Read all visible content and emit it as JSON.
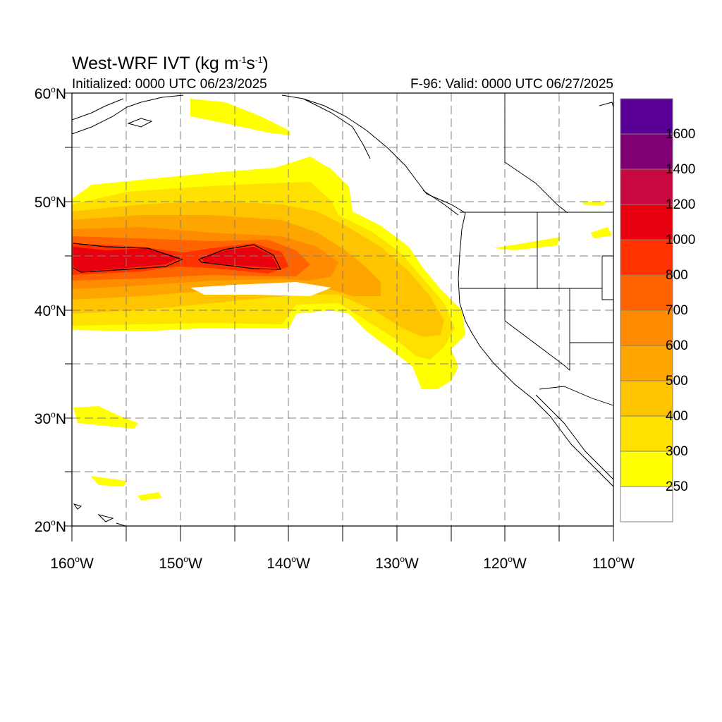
{
  "title": {
    "main": "West-WRF IVT (kg m",
    "exp1": "-1",
    "mid": "s",
    "exp2": "-1",
    "end": ")"
  },
  "subtitle_left": "Initialized: 0000 UTC 06/23/2025",
  "subtitle_right": "F-96: Valid: 0000 UTC 06/27/2025",
  "lat_labels": [
    {
      "value": 60,
      "text": "60",
      "hemi": "N"
    },
    {
      "value": 50,
      "text": "50",
      "hemi": "N"
    },
    {
      "value": 40,
      "text": "40",
      "hemi": "N"
    },
    {
      "value": 30,
      "text": "30",
      "hemi": "N"
    },
    {
      "value": 20,
      "text": "20",
      "hemi": "N"
    }
  ],
  "lon_labels": [
    {
      "value": -160,
      "text": "160",
      "hemi": "W"
    },
    {
      "value": -150,
      "text": "150",
      "hemi": "W"
    },
    {
      "value": -140,
      "text": "140",
      "hemi": "W"
    },
    {
      "value": -130,
      "text": "130",
      "hemi": "W"
    },
    {
      "value": -120,
      "text": "120",
      "hemi": "W"
    },
    {
      "value": -110,
      "text": "110",
      "hemi": "W"
    }
  ],
  "degree_symbol": "o",
  "colorbar": {
    "labels": [
      "1600",
      "1400",
      "1200",
      "1000",
      "800",
      "700",
      "600",
      "500",
      "400",
      "300",
      "250"
    ],
    "colors": [
      "#5a0096",
      "#7e0074",
      "#c8083e",
      "#e8000e",
      "#ff3200",
      "#ff6400",
      "#ff8c00",
      "#ffa500",
      "#ffc400",
      "#ffe100",
      "#ffff00",
      "#ffffff"
    ]
  },
  "map_extent": {
    "lon_min": -160,
    "lon_max": -110,
    "lat_min": 20,
    "lat_max": 60
  }
}
